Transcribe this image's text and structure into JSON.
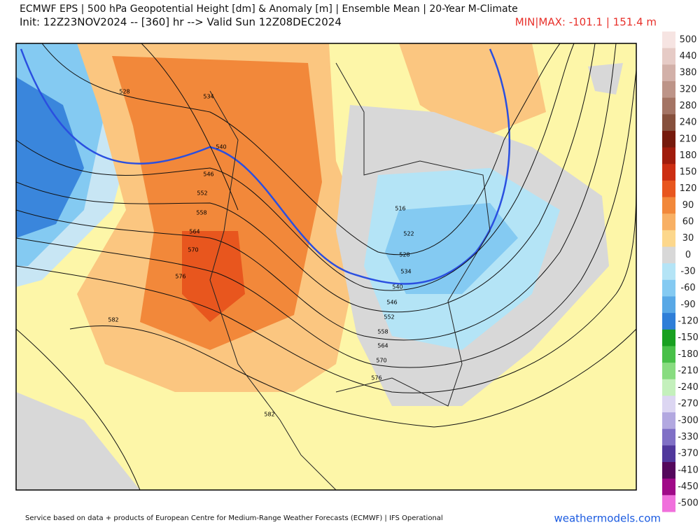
{
  "header": {
    "title": "ECMWF EPS | 500 hPa Geopotential Height [dm] & Anomaly [m] | Ensemble Mean | 20-Year M-Climate",
    "subtitle": "Init: 12Z23NOV2024 -- [360] hr --> Valid Sun 12Z08DEC2024",
    "minmax": "MIN|MAX: -101.1 | 151.4 m"
  },
  "map": {
    "contour_labels": [
      "528",
      "534",
      "540",
      "546",
      "552",
      "558",
      "564",
      "570",
      "576",
      "582",
      "582",
      "516",
      "522",
      "528",
      "534",
      "540",
      "546",
      "552",
      "558",
      "564",
      "570",
      "576"
    ]
  },
  "colorbar": {
    "labels": [
      "500",
      "440",
      "380",
      "320",
      "280",
      "240",
      "210",
      "180",
      "150",
      "120",
      "90",
      "60",
      "30",
      "0",
      "-30",
      "-60",
      "-90",
      "-120",
      "-150",
      "-180",
      "-210",
      "-240",
      "-270",
      "-300",
      "-330",
      "-370",
      "-410",
      "-450",
      "-500"
    ],
    "colors": [
      "#f6e4e2",
      "#e6cbc6",
      "#d2b0a8",
      "#bd9488",
      "#a47464",
      "#86503c",
      "#761a0c",
      "#a01c0c",
      "#cc2e12",
      "#e8561e",
      "#f2883a",
      "#f8b064",
      "#fcd78c",
      "#d8d8d8",
      "#b4e4f6",
      "#84caf2",
      "#58a8e6",
      "#2e7ed8",
      "#18a020",
      "#48c048",
      "#88dc80",
      "#c4f0bc",
      "#dcd6f2",
      "#b2a8e0",
      "#8070c6",
      "#50389c",
      "#54085c",
      "#a00a88",
      "#f070dc"
    ]
  },
  "footer": {
    "credit": "Service based on data + products of European Centre for Medium-Range Weather Forecasts (ECMWF) | IFS Operational",
    "site": "weathermodels.com"
  }
}
